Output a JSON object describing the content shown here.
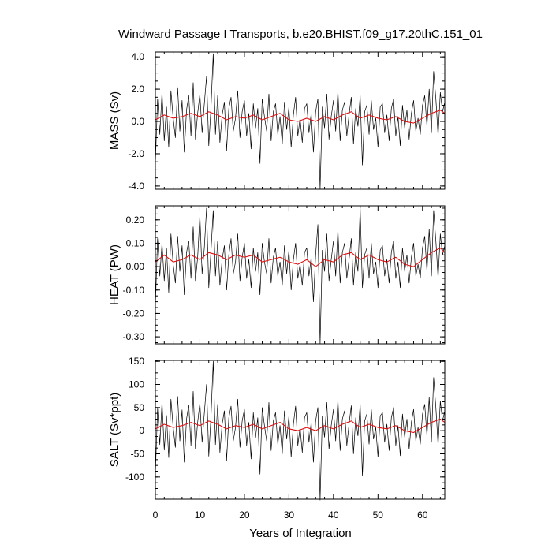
{
  "title": "Windward Passage I Transports, b.e20.BHIST.f09_g17.20thC.151_01",
  "xlabel": "Years of Integration",
  "colors": {
    "raw": "#000000",
    "smooth": "#e01010",
    "axis": "#000000"
  },
  "chart_data": [
    {
      "type": "line",
      "ylabel": "MASS (Sv)",
      "ylim": [
        -4.2,
        4.3
      ],
      "yticks": [
        -4.0,
        -2.0,
        0.0,
        2.0,
        4.0
      ],
      "yticklabels": [
        "-4.0",
        "-2.0",
        "0.0",
        "2.0",
        "4.0"
      ],
      "xlim": [
        0,
        65
      ],
      "xticks": [
        0,
        10,
        20,
        30,
        40,
        50,
        60
      ],
      "xticklabels": [
        "0",
        "10",
        "20",
        "30",
        "40",
        "50",
        "60"
      ],
      "series": [
        {
          "x": [
            0.0,
            0.5,
            1.0,
            1.5,
            2.0,
            2.5,
            3.0,
            3.5,
            4.0,
            4.5,
            5.0,
            5.5,
            6.0,
            6.5,
            7.0,
            7.5,
            8.0,
            8.5,
            9.0,
            9.5,
            10.0,
            10.5,
            11.0,
            11.5,
            12.0,
            12.5,
            13.0,
            13.5,
            14.0,
            14.5,
            15.0,
            15.5,
            16.0,
            16.5,
            17.0,
            17.5,
            18.0,
            18.5,
            19.0,
            19.5,
            20.0,
            20.5,
            21.0,
            21.5,
            22.0,
            22.5,
            23.0,
            23.5,
            24.0,
            24.5,
            25.0,
            25.5,
            26.0,
            26.5,
            27.0,
            27.5,
            28.0,
            28.5,
            29.0,
            29.5,
            30.0,
            30.5,
            31.0,
            31.5,
            32.0,
            32.5,
            33.0,
            33.5,
            34.0,
            34.5,
            35.0,
            35.5,
            36.0,
            36.5,
            37.0,
            37.5,
            38.0,
            38.5,
            39.0,
            39.5,
            40.0,
            40.5,
            41.0,
            41.5,
            42.0,
            42.5,
            43.0,
            43.5,
            44.0,
            44.5,
            45.0,
            45.5,
            46.0,
            46.5,
            47.0,
            47.5,
            48.0,
            48.5,
            49.0,
            49.5,
            50.0,
            50.5,
            51.0,
            51.5,
            52.0,
            52.5,
            53.0,
            53.5,
            54.0,
            54.5,
            55.0,
            55.5,
            56.0,
            56.5,
            57.0,
            57.5,
            58.0,
            58.5,
            59.0,
            59.5,
            60.0,
            60.5,
            61.0,
            61.5,
            62.0,
            62.5,
            63.0,
            63.5,
            64.0,
            64.5,
            65.0
          ],
          "y": [
            -2.6,
            1.4,
            -0.8,
            1.8,
            -1.2,
            0.9,
            -1.6,
            1.9,
            0.2,
            -1.0,
            2.1,
            -0.6,
            1.3,
            -1.9,
            0.7,
            1.6,
            -0.9,
            2.4,
            -1.1,
            0.5,
            1.7,
            -0.7,
            1.1,
            2.8,
            -1.5,
            0.9,
            4.2,
            -0.8,
            1.6,
            -1.3,
            0.4,
            1.2,
            -1.8,
            0.8,
            1.5,
            -0.6,
            0.2,
            1.9,
            -1.0,
            0.6,
            1.3,
            -0.9,
            0.5,
            -1.7,
            1.1,
            -0.4,
            0.8,
            -2.6,
            1.4,
            0.3,
            -0.6,
            1.7,
            -1.2,
            0.6,
            1.1,
            -0.8,
            0.3,
            -1.4,
            1.2,
            -0.5,
            0.9,
            -1.6,
            0.4,
            1.5,
            -0.9,
            0.2,
            -1.3,
            0.8,
            1.1,
            -0.7,
            0.5,
            -1.9,
            0.6,
            1.4,
            -4.2,
            0.9,
            -0.4,
            1.7,
            -1.1,
            0.3,
            1.3,
            -0.6,
            1.9,
            -1.2,
            0.7,
            1.2,
            -0.9,
            0.4,
            1.5,
            -1.4,
            0.8,
            -0.3,
            1.6,
            -2.7,
            0.6,
            1.0,
            -0.8,
            1.3,
            -0.5,
            0.2,
            -1.6,
            0.9,
            1.1,
            -0.7,
            0.4,
            -1.2,
            0.8,
            1.4,
            -0.9,
            0.3,
            -1.5,
            1.0,
            -0.4,
            0.7,
            -1.1,
            0.5,
            1.3,
            -0.6,
            0.2,
            -0.8,
            1.0,
            1.6,
            -0.3,
            2.0,
            -0.7,
            3.1,
            1.4,
            -0.9,
            1.8,
            0.6,
            1.2
          ]
        },
        {
          "x": [
            0,
            2,
            4,
            6,
            8,
            10,
            12,
            14,
            16,
            18,
            20,
            22,
            24,
            26,
            28,
            30,
            32,
            34,
            36,
            38,
            40,
            42,
            44,
            46,
            48,
            50,
            52,
            54,
            56,
            58,
            60,
            62,
            64,
            65
          ],
          "y": [
            0.1,
            0.4,
            0.2,
            0.3,
            0.5,
            0.3,
            0.6,
            0.4,
            0.1,
            0.3,
            0.2,
            0.4,
            0.1,
            0.3,
            0.5,
            0.1,
            0.0,
            0.2,
            0.0,
            0.3,
            0.1,
            0.4,
            0.6,
            0.2,
            0.4,
            0.2,
            0.1,
            0.3,
            0.0,
            -0.1,
            0.2,
            0.5,
            0.7,
            0.5
          ]
        }
      ]
    },
    {
      "type": "line",
      "ylabel": "HEAT (PW)",
      "ylim": [
        -0.33,
        0.26
      ],
      "yticks": [
        -0.3,
        -0.2,
        -0.1,
        0.0,
        0.1,
        0.2
      ],
      "yticklabels": [
        "-0.30",
        "-0.20",
        "-0.10",
        "0.00",
        "0.10",
        "0.20"
      ],
      "xlim": [
        0,
        65
      ],
      "xticks": [
        0,
        10,
        20,
        30,
        40,
        50,
        60
      ],
      "xticklabels": [
        "0",
        "10",
        "20",
        "30",
        "40",
        "50",
        "60"
      ],
      "series": [
        {
          "x": [
            0.0,
            0.5,
            1.0,
            1.5,
            2.0,
            2.5,
            3.0,
            3.5,
            4.0,
            4.5,
            5.0,
            5.5,
            6.0,
            6.5,
            7.0,
            7.5,
            8.0,
            8.5,
            9.0,
            9.5,
            10.0,
            10.5,
            11.0,
            11.5,
            12.0,
            12.5,
            13.0,
            13.5,
            14.0,
            14.5,
            15.0,
            15.5,
            16.0,
            16.5,
            17.0,
            17.5,
            18.0,
            18.5,
            19.0,
            19.5,
            20.0,
            20.5,
            21.0,
            21.5,
            22.0,
            22.5,
            23.0,
            23.5,
            24.0,
            24.5,
            25.0,
            25.5,
            26.0,
            26.5,
            27.0,
            27.5,
            28.0,
            28.5,
            29.0,
            29.5,
            30.0,
            30.5,
            31.0,
            31.5,
            32.0,
            32.5,
            33.0,
            33.5,
            34.0,
            34.5,
            35.0,
            35.5,
            36.0,
            36.5,
            37.0,
            37.5,
            38.0,
            38.5,
            39.0,
            39.5,
            40.0,
            40.5,
            41.0,
            41.5,
            42.0,
            42.5,
            43.0,
            43.5,
            44.0,
            44.5,
            45.0,
            45.5,
            46.0,
            46.5,
            47.0,
            47.5,
            48.0,
            48.5,
            49.0,
            49.5,
            50.0,
            50.5,
            51.0,
            51.5,
            52.0,
            52.5,
            53.0,
            53.5,
            54.0,
            54.5,
            55.0,
            55.5,
            56.0,
            56.5,
            57.0,
            57.5,
            58.0,
            58.5,
            59.0,
            59.5,
            60.0,
            60.5,
            61.0,
            61.5,
            62.0,
            62.5,
            63.0,
            63.5,
            64.0,
            64.5,
            65.0
          ],
          "y": [
            -0.17,
            0.12,
            -0.04,
            0.1,
            -0.06,
            0.08,
            -0.11,
            0.14,
            0.01,
            -0.07,
            0.13,
            -0.02,
            0.09,
            -0.12,
            0.06,
            0.11,
            -0.05,
            0.17,
            -0.06,
            0.04,
            0.22,
            -0.03,
            0.08,
            0.25,
            -0.09,
            0.07,
            0.24,
            -0.04,
            0.11,
            -0.08,
            0.03,
            0.09,
            -0.1,
            0.05,
            0.12,
            -0.03,
            0.02,
            0.14,
            -0.06,
            0.04,
            0.1,
            -0.05,
            0.03,
            -0.09,
            0.08,
            -0.02,
            0.06,
            -0.12,
            0.1,
            0.02,
            -0.03,
            0.12,
            -0.07,
            0.04,
            0.08,
            -0.04,
            0.02,
            -0.08,
            0.09,
            -0.03,
            0.07,
            -0.1,
            0.03,
            0.1,
            -0.05,
            0.01,
            -0.08,
            0.06,
            0.08,
            -0.04,
            0.04,
            -0.15,
            0.05,
            0.18,
            -0.33,
            0.07,
            -0.02,
            0.14,
            -0.06,
            0.03,
            0.11,
            -0.04,
            0.16,
            -0.07,
            0.06,
            0.1,
            -0.05,
            0.03,
            0.12,
            -0.08,
            0.06,
            -0.02,
            0.25,
            -0.09,
            0.05,
            0.08,
            -0.05,
            0.1,
            -0.03,
            0.02,
            -0.09,
            0.07,
            0.09,
            -0.04,
            0.03,
            -0.07,
            0.06,
            0.11,
            -0.05,
            0.02,
            -0.09,
            0.08,
            -0.02,
            0.05,
            -0.07,
            0.04,
            0.1,
            -0.04,
            0.01,
            -0.05,
            0.08,
            0.13,
            -0.02,
            0.16,
            -0.04,
            0.24,
            0.11,
            -0.05,
            0.14,
            0.05,
            0.09
          ]
        },
        {
          "x": [
            0,
            2,
            4,
            6,
            8,
            10,
            12,
            14,
            16,
            18,
            20,
            22,
            24,
            26,
            28,
            30,
            32,
            34,
            36,
            38,
            40,
            42,
            44,
            46,
            48,
            50,
            52,
            54,
            56,
            58,
            60,
            62,
            64,
            65
          ],
          "y": [
            0.02,
            0.05,
            0.02,
            0.03,
            0.05,
            0.03,
            0.06,
            0.05,
            0.03,
            0.05,
            0.04,
            0.05,
            0.02,
            0.03,
            0.04,
            0.02,
            0.01,
            0.03,
            0.0,
            0.03,
            0.02,
            0.05,
            0.06,
            0.03,
            0.05,
            0.03,
            0.02,
            0.04,
            0.01,
            0.0,
            0.03,
            0.06,
            0.08,
            0.06
          ]
        }
      ]
    },
    {
      "type": "line",
      "ylabel": "SALT (Sv*ppt)",
      "ylim": [
        -148,
        152
      ],
      "yticks": [
        -100,
        -50,
        0,
        50,
        100,
        150
      ],
      "yticklabels": [
        "-100",
        "-50",
        "0",
        "50",
        "100",
        "150"
      ],
      "xlim": [
        0,
        65
      ],
      "xticks": [
        0,
        10,
        20,
        30,
        40,
        50,
        60
      ],
      "xticklabels": [
        "0",
        "10",
        "20",
        "30",
        "40",
        "50",
        "60"
      ],
      "series": [
        {
          "x": [
            0.0,
            0.5,
            1.0,
            1.5,
            2.0,
            2.5,
            3.0,
            3.5,
            4.0,
            4.5,
            5.0,
            5.5,
            6.0,
            6.5,
            7.0,
            7.5,
            8.0,
            8.5,
            9.0,
            9.5,
            10.0,
            10.5,
            11.0,
            11.5,
            12.0,
            12.5,
            13.0,
            13.5,
            14.0,
            14.5,
            15.0,
            15.5,
            16.0,
            16.5,
            17.0,
            17.5,
            18.0,
            18.5,
            19.0,
            19.5,
            20.0,
            20.5,
            21.0,
            21.5,
            22.0,
            22.5,
            23.0,
            23.5,
            24.0,
            24.5,
            25.0,
            25.5,
            26.0,
            26.5,
            27.0,
            27.5,
            28.0,
            28.5,
            29.0,
            29.5,
            30.0,
            30.5,
            31.0,
            31.5,
            32.0,
            32.5,
            33.0,
            33.5,
            34.0,
            34.5,
            35.0,
            35.5,
            36.0,
            36.5,
            37.0,
            37.5,
            38.0,
            38.5,
            39.0,
            39.5,
            40.0,
            40.5,
            41.0,
            41.5,
            42.0,
            42.5,
            43.0,
            43.5,
            44.0,
            44.5,
            45.0,
            45.5,
            46.0,
            46.5,
            47.0,
            47.5,
            48.0,
            48.5,
            49.0,
            49.5,
            50.0,
            50.5,
            51.0,
            51.5,
            52.0,
            52.5,
            53.0,
            53.5,
            54.0,
            54.5,
            55.0,
            55.5,
            56.0,
            56.5,
            57.0,
            57.5,
            58.0,
            58.5,
            59.0,
            59.5,
            60.0,
            60.5,
            61.0,
            61.5,
            62.0,
            62.5,
            63.0,
            63.5,
            64.0,
            64.5,
            65.0
          ],
          "y": [
            -95,
            48,
            -30,
            62,
            -42,
            33,
            -58,
            68,
            7,
            -36,
            74,
            -22,
            45,
            -68,
            25,
            56,
            -32,
            85,
            -40,
            18,
            60,
            -25,
            38,
            100,
            -55,
            32,
            150,
            -30,
            57,
            -47,
            14,
            43,
            -64,
            28,
            53,
            -22,
            7,
            68,
            -36,
            21,
            46,
            -32,
            18,
            -61,
            39,
            -15,
            28,
            -94,
            50,
            11,
            -22,
            61,
            -43,
            21,
            39,
            -29,
            11,
            -50,
            43,
            -18,
            32,
            -57,
            14,
            53,
            -32,
            7,
            -47,
            28,
            39,
            -25,
            18,
            -68,
            21,
            50,
            -150,
            32,
            -14,
            61,
            -40,
            11,
            46,
            -22,
            68,
            -43,
            25,
            43,
            -32,
            14,
            54,
            -50,
            28,
            -11,
            57,
            -97,
            21,
            36,
            -29,
            46,
            -18,
            7,
            -57,
            32,
            39,
            -25,
            14,
            -43,
            28,
            50,
            -32,
            11,
            -54,
            36,
            -14,
            25,
            -40,
            18,
            46,
            -22,
            7,
            -29,
            36,
            57,
            -11,
            72,
            -25,
            115,
            50,
            -32,
            64,
            21,
            43
          ]
        },
        {
          "x": [
            0,
            2,
            4,
            6,
            8,
            10,
            12,
            14,
            16,
            18,
            20,
            22,
            24,
            26,
            28,
            30,
            32,
            34,
            36,
            38,
            40,
            42,
            44,
            46,
            48,
            50,
            52,
            54,
            56,
            58,
            60,
            62,
            64,
            65
          ],
          "y": [
            4,
            14,
            7,
            11,
            18,
            11,
            21,
            14,
            4,
            11,
            7,
            14,
            4,
            11,
            18,
            4,
            0,
            7,
            0,
            11,
            4,
            14,
            21,
            7,
            14,
            7,
            4,
            11,
            0,
            -4,
            7,
            18,
            25,
            18
          ]
        }
      ]
    }
  ]
}
